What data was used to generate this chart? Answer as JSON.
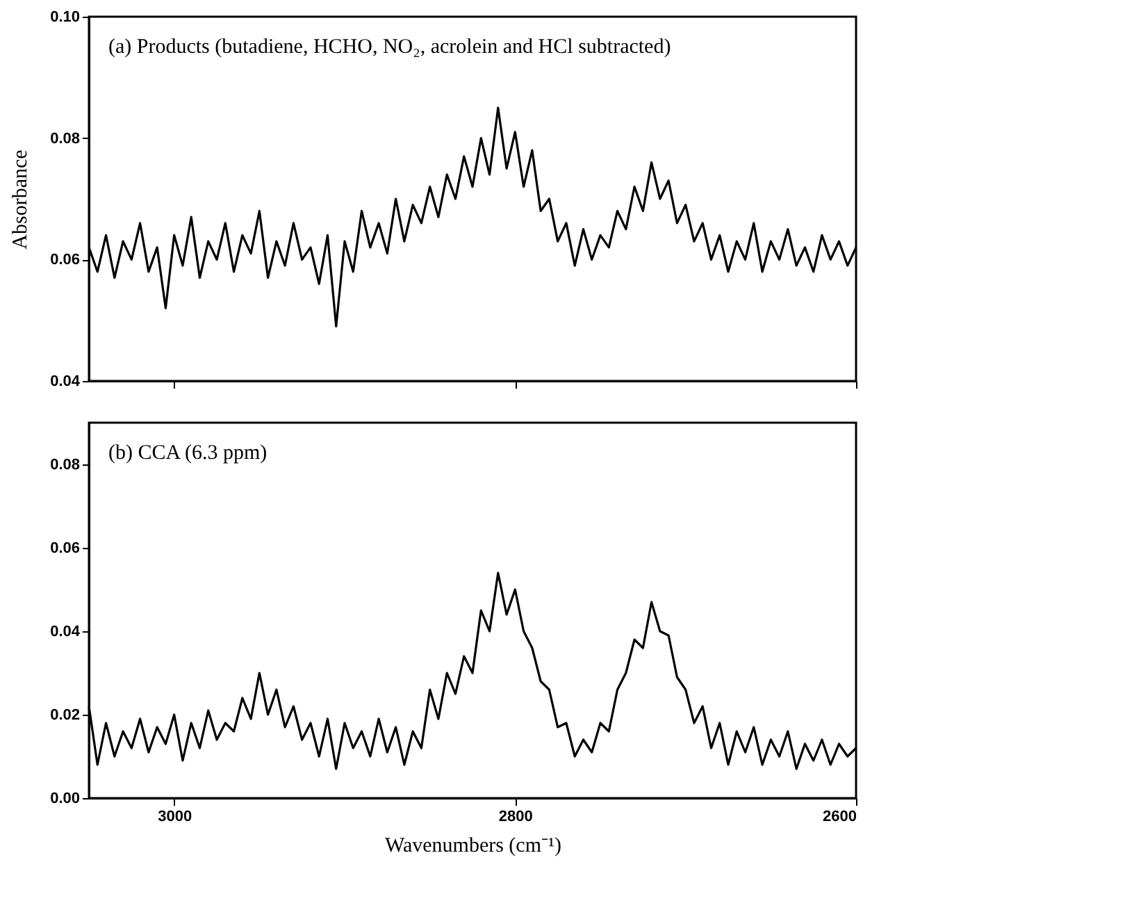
{
  "chart_data": [
    {
      "type": "line",
      "ylabel": "Absorbance",
      "annotations": [
        "(a) Products (butadiene, HCHO, NO₂, acrolein and HCl subtracted)"
      ],
      "xlim": [
        3050,
        2600
      ],
      "xticks": [
        3000,
        2800,
        2600
      ],
      "ylim": [
        0.04,
        0.1
      ],
      "yticks": [
        {
          "value": 0.04,
          "label": "0.04"
        },
        {
          "value": 0.06,
          "label": "0.06"
        },
        {
          "value": 0.08,
          "label": "0.08"
        },
        {
          "value": 0.1,
          "label": "0.10"
        }
      ],
      "tick_labels": "y",
      "grid": false,
      "x": [
        3050,
        3045,
        3040,
        3035,
        3030,
        3025,
        3020,
        3015,
        3010,
        3005,
        3000,
        2995,
        2990,
        2985,
        2980,
        2975,
        2970,
        2965,
        2960,
        2955,
        2950,
        2945,
        2940,
        2935,
        2930,
        2925,
        2920,
        2915,
        2910,
        2905,
        2900,
        2895,
        2890,
        2885,
        2880,
        2875,
        2870,
        2865,
        2860,
        2855,
        2850,
        2845,
        2840,
        2835,
        2830,
        2825,
        2820,
        2815,
        2810,
        2805,
        2800,
        2795,
        2790,
        2785,
        2780,
        2775,
        2770,
        2765,
        2760,
        2755,
        2750,
        2745,
        2740,
        2735,
        2730,
        2725,
        2720,
        2715,
        2710,
        2705,
        2700,
        2695,
        2690,
        2685,
        2680,
        2675,
        2670,
        2665,
        2660,
        2655,
        2650,
        2645,
        2640,
        2635,
        2630,
        2625,
        2620,
        2615,
        2610,
        2605,
        2600
      ],
      "series": [
        {
          "color": "#000000",
          "values": [
            0.062,
            0.058,
            0.064,
            0.057,
            0.063,
            0.06,
            0.066,
            0.058,
            0.062,
            0.052,
            0.064,
            0.059,
            0.067,
            0.057,
            0.063,
            0.06,
            0.066,
            0.058,
            0.064,
            0.061,
            0.068,
            0.057,
            0.063,
            0.059,
            0.066,
            0.06,
            0.062,
            0.056,
            0.064,
            0.049,
            0.063,
            0.058,
            0.068,
            0.062,
            0.066,
            0.061,
            0.07,
            0.063,
            0.069,
            0.066,
            0.072,
            0.067,
            0.074,
            0.07,
            0.077,
            0.072,
            0.08,
            0.074,
            0.085,
            0.075,
            0.081,
            0.072,
            0.078,
            0.068,
            0.07,
            0.063,
            0.066,
            0.059,
            0.065,
            0.06,
            0.064,
            0.062,
            0.068,
            0.065,
            0.072,
            0.068,
            0.076,
            0.07,
            0.073,
            0.066,
            0.069,
            0.063,
            0.066,
            0.06,
            0.064,
            0.058,
            0.063,
            0.06,
            0.066,
            0.058,
            0.063,
            0.06,
            0.065,
            0.059,
            0.062,
            0.058,
            0.064,
            0.06,
            0.063,
            0.059,
            0.062
          ]
        }
      ]
    },
    {
      "type": "line",
      "xlabel": "Wavenumbers (cm⁻¹)",
      "annotations": [
        "(b) CCA (6.3 ppm)"
      ],
      "xlim": [
        3050,
        2600
      ],
      "xticks": [
        3000,
        2800,
        2600
      ],
      "ylim": [
        0.0,
        0.09
      ],
      "yticks": [
        {
          "value": 0,
          "label": "0.00"
        },
        {
          "value": 0.02,
          "label": "0.02"
        },
        {
          "value": 0.04,
          "label": "0.04"
        },
        {
          "value": 0.06,
          "label": "0.06"
        },
        {
          "value": 0.08,
          "label": "0.08"
        }
      ],
      "grid": false,
      "x": [
        3050,
        3045,
        3040,
        3035,
        3030,
        3025,
        3020,
        3015,
        3010,
        3005,
        3000,
        2995,
        2990,
        2985,
        2980,
        2975,
        2970,
        2965,
        2960,
        2955,
        2950,
        2945,
        2940,
        2935,
        2930,
        2925,
        2920,
        2915,
        2910,
        2905,
        2900,
        2895,
        2890,
        2885,
        2880,
        2875,
        2870,
        2865,
        2860,
        2855,
        2850,
        2845,
        2840,
        2835,
        2830,
        2825,
        2820,
        2815,
        2810,
        2805,
        2800,
        2795,
        2790,
        2785,
        2780,
        2775,
        2770,
        2765,
        2760,
        2755,
        2750,
        2745,
        2740,
        2735,
        2730,
        2725,
        2720,
        2715,
        2710,
        2705,
        2700,
        2695,
        2690,
        2685,
        2680,
        2675,
        2670,
        2665,
        2660,
        2655,
        2650,
        2645,
        2640,
        2635,
        2630,
        2625,
        2620,
        2615,
        2610,
        2605,
        2600
      ],
      "series": [
        {
          "color": "#000000",
          "values": [
            0.022,
            0.008,
            0.018,
            0.01,
            0.016,
            0.012,
            0.019,
            0.011,
            0.017,
            0.013,
            0.02,
            0.009,
            0.018,
            0.012,
            0.021,
            0.014,
            0.018,
            0.016,
            0.024,
            0.019,
            0.03,
            0.02,
            0.026,
            0.017,
            0.022,
            0.014,
            0.018,
            0.01,
            0.019,
            0.007,
            0.018,
            0.012,
            0.016,
            0.01,
            0.019,
            0.011,
            0.017,
            0.008,
            0.016,
            0.012,
            0.026,
            0.019,
            0.03,
            0.025,
            0.034,
            0.03,
            0.045,
            0.04,
            0.054,
            0.044,
            0.05,
            0.04,
            0.036,
            0.028,
            0.026,
            0.017,
            0.018,
            0.01,
            0.014,
            0.011,
            0.018,
            0.016,
            0.026,
            0.03,
            0.038,
            0.036,
            0.047,
            0.04,
            0.039,
            0.029,
            0.026,
            0.018,
            0.022,
            0.012,
            0.018,
            0.008,
            0.016,
            0.011,
            0.017,
            0.008,
            0.014,
            0.01,
            0.016,
            0.007,
            0.013,
            0.009,
            0.014,
            0.008,
            0.013,
            0.01,
            0.012
          ]
        }
      ]
    }
  ]
}
